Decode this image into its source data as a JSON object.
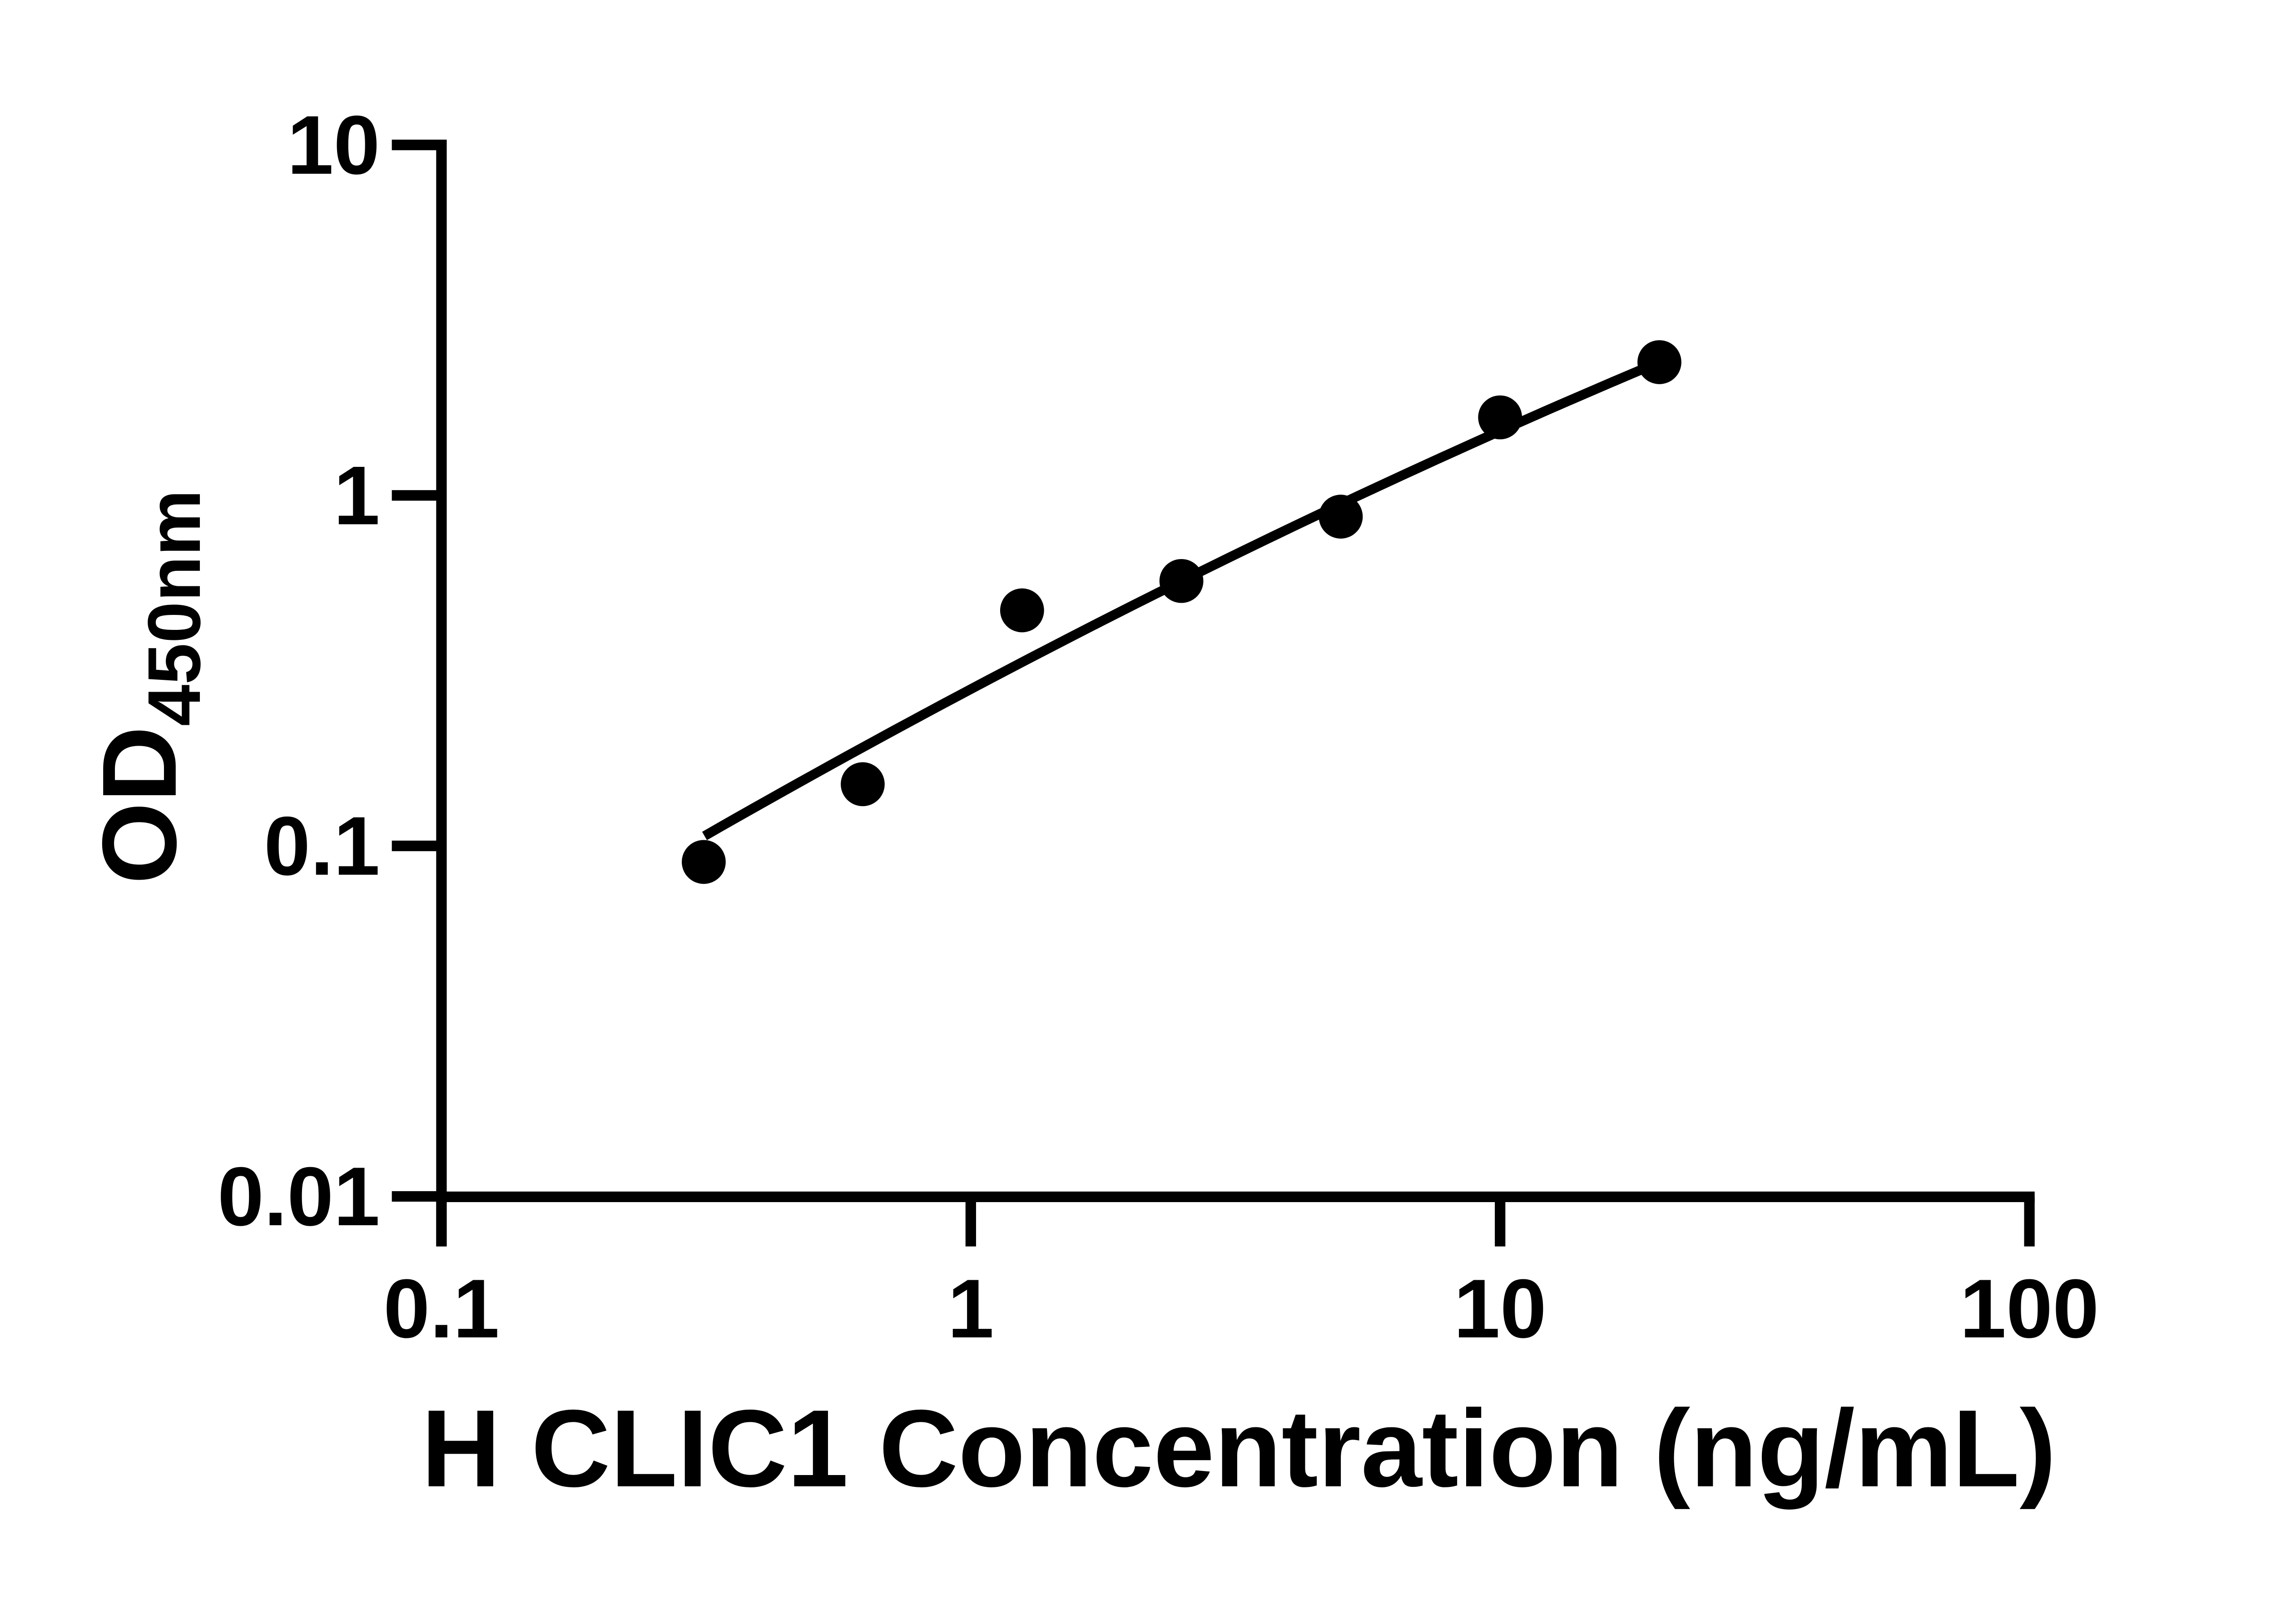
{
  "chart_data": {
    "type": "scatter",
    "title": "",
    "xlabel": "H CLIC1 Concentration (ng/mL)",
    "ylabel_main": "OD",
    "ylabel_sub": "450nm",
    "x_scale": "log",
    "y_scale": "log",
    "xlim": [
      0.1,
      100
    ],
    "ylim": [
      0.01,
      10
    ],
    "x_tick_values": [
      0.1,
      1,
      10,
      100
    ],
    "x_tick_labels": [
      "0.1",
      "1",
      "10",
      "100"
    ],
    "y_tick_values": [
      10,
      1,
      0.1,
      0.01
    ],
    "y_tick_labels": [
      "10",
      "1",
      "0.1",
      "0.01"
    ],
    "grid": "off",
    "legend": "none",
    "points": [
      {
        "x": 0.313,
        "y": 0.09
      },
      {
        "x": 0.625,
        "y": 0.15
      },
      {
        "x": 1.25,
        "y": 0.47
      },
      {
        "x": 2.5,
        "y": 0.57
      },
      {
        "x": 5,
        "y": 0.87
      },
      {
        "x": 10,
        "y": 1.67
      },
      {
        "x": 20,
        "y": 2.4
      }
    ],
    "fit_curve": {
      "description": "quadratic in log10-log10 space: log10(OD) = a + b*u + c*u^2, u = log10(conc)",
      "a": -0.5528,
      "b": 0.8005,
      "c": -0.0639,
      "log_x_min": -0.503,
      "log_x_max": 1.301
    },
    "colors": {
      "ink": "#000000",
      "background": "#ffffff"
    }
  }
}
